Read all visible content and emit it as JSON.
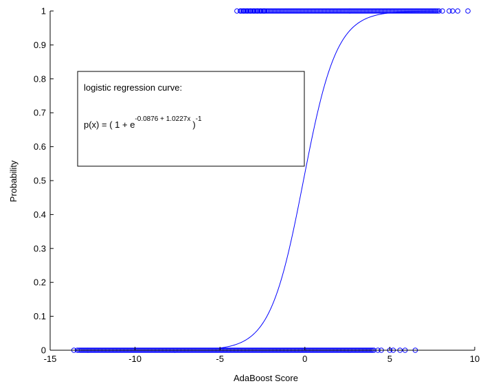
{
  "chart_data": {
    "type": "scatter",
    "title": "",
    "xlabel": "AdaBoost Score",
    "ylabel": "Probability",
    "xlim": [
      -15,
      10
    ],
    "ylim": [
      0,
      1
    ],
    "xticks": [
      "-15",
      "-10",
      "-5",
      "0",
      "5",
      "10"
    ],
    "yticks": [
      "0",
      "0.1",
      "0.2",
      "0.3",
      "0.4",
      "0.5",
      "0.6",
      "0.7",
      "0.8",
      "0.9",
      "1"
    ],
    "grid": false,
    "series_color": "#0000ff",
    "curve": {
      "type": "line",
      "b0": -0.0876,
      "b1": 1.0227,
      "x_range": [
        -5,
        8
      ]
    },
    "points_y1": {
      "dense_range": [
        -3.8,
        7.8
      ],
      "x": [
        -4.0,
        -3.8,
        -3.6,
        -3.4,
        -3.2,
        -3.0,
        -2.8,
        -2.6,
        -2.4,
        7.9,
        8.1,
        8.5,
        8.7,
        9.0,
        9.6
      ],
      "y": 1
    },
    "points_y0": {
      "dense_range": [
        -13.3,
        4.1
      ],
      "x": [
        -13.6,
        -13.4,
        4.3,
        4.5,
        5.0,
        5.2,
        5.6,
        5.9,
        6.5
      ],
      "y": 0
    },
    "annotation": {
      "line1": "logistic regression curve:",
      "formula_prefix": "p(x) = ( 1 + e",
      "formula_exponent": "-0.0876 + 1.0227x",
      "formula_close": ")",
      "formula_outer_exponent": "-1"
    }
  }
}
